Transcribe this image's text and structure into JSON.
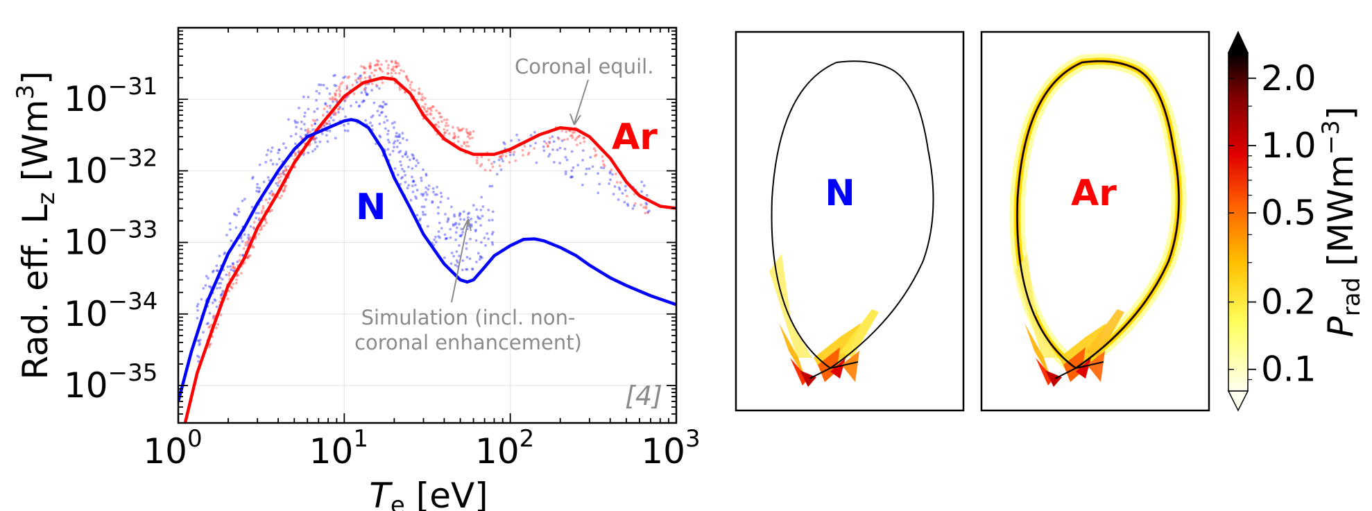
{
  "chart_data": [
    {
      "type": "line",
      "xlabel": "T",
      "xlabel_sub": "e",
      "xlabel_unit": " [eV]",
      "ylabel": "Rad. eff. L",
      "ylabel_sub": "z",
      "ylabel_unit": " [Wm",
      "ylabel_sup": "3",
      "ylabel_close": "]",
      "xscale": "log",
      "yscale": "log",
      "xlim": [
        1,
        1000
      ],
      "ylim": [
        3e-36,
        1e-30
      ],
      "x_ticks": [
        {
          "value": 1,
          "base": "10",
          "exp": "0"
        },
        {
          "value": 10,
          "base": "10",
          "exp": "1"
        },
        {
          "value": 100,
          "base": "10",
          "exp": "2"
        },
        {
          "value": 1000,
          "base": "10",
          "exp": "3"
        }
      ],
      "y_ticks": [
        {
          "value": 1e-31,
          "base": "10",
          "exp": "−31"
        },
        {
          "value": 1e-32,
          "base": "10",
          "exp": "−32"
        },
        {
          "value": 1e-33,
          "base": "10",
          "exp": "−33"
        },
        {
          "value": 1e-34,
          "base": "10",
          "exp": "−34"
        },
        {
          "value": 1e-35,
          "base": "10",
          "exp": "−35"
        }
      ],
      "grid": true,
      "series": [
        {
          "name": "Ar",
          "color": "#ff0000",
          "x": [
            1.1,
            1.3,
            1.6,
            2.0,
            2.5,
            3.0,
            4.0,
            5.0,
            7.0,
            10,
            13,
            17,
            20,
            25,
            30,
            40,
            50,
            60,
            80,
            100,
            150,
            200,
            250,
            300,
            400,
            500,
            600,
            800,
            1000
          ],
          "y": [
            3e-36,
            1.5e-35,
            6e-35,
            2.5e-34,
            6e-34,
            1.6e-33,
            5e-33,
            1.3e-32,
            4e-32,
            1.1e-31,
            1.7e-31,
            2e-31,
            1.9e-31,
            1.2e-31,
            6e-32,
            2.8e-32,
            2e-32,
            1.7e-32,
            1.7e-32,
            2e-32,
            3.2e-32,
            4e-32,
            3.8e-32,
            3e-32,
            1.5e-32,
            7e-33,
            4.5e-33,
            3.2e-33,
            3e-33
          ]
        },
        {
          "name": "N",
          "color": "#0000ff",
          "x": [
            1.0,
            1.2,
            1.5,
            2.0,
            2.5,
            3.0,
            4.0,
            5.0,
            6.0,
            8.0,
            10,
            11,
            12,
            14,
            17,
            20,
            25,
            30,
            40,
            50,
            55,
            60,
            70,
            80,
            100,
            120,
            140,
            160,
            200,
            250,
            300,
            400,
            500,
            700,
            1000
          ],
          "y": [
            6e-36,
            3e-35,
            1.5e-34,
            7e-34,
            1.6e-33,
            3.5e-33,
            1e-32,
            2e-32,
            3e-32,
            4e-32,
            5e-32,
            5.2e-32,
            5e-32,
            4e-32,
            2e-32,
            8e-33,
            3e-33,
            1.3e-33,
            5e-34,
            3e-34,
            2.8e-34,
            3e-34,
            4.5e-34,
            6.5e-34,
            9e-34,
            1.1e-33,
            1.12e-33,
            1.05e-33,
            8.5e-34,
            6.5e-34,
            4.8e-34,
            3.2e-34,
            2.5e-34,
            1.8e-34,
            1.35e-34
          ]
        }
      ],
      "labels": {
        "ar": "Ar",
        "n": "N"
      },
      "annotations": {
        "coronal": "Coronal equil.",
        "simulation_line1": "Simulation (incl. non-",
        "simulation_line2": "coronal enhancement)",
        "reference": "[4]"
      },
      "annotation_color": "#8a8a8a",
      "colorbar": {
        "ticks": [
          "2.0",
          "1.0",
          "0.5",
          "0.2",
          "0.1"
        ],
        "tick_values": [
          2.0,
          1.0,
          0.5,
          0.2,
          0.1
        ],
        "label": "P",
        "label_sub": "rad",
        "label_unit": " [MWm",
        "label_sup": "−3",
        "label_close": "]",
        "colormap": [
          "#fffff0",
          "#ffff60",
          "#ffc000",
          "#ff6000",
          "#e00000",
          "#800000",
          "#000000"
        ]
      },
      "panels": [
        {
          "label": "N",
          "color": "#0000ff"
        },
        {
          "label": "Ar",
          "color": "#ff0000"
        }
      ]
    }
  ]
}
